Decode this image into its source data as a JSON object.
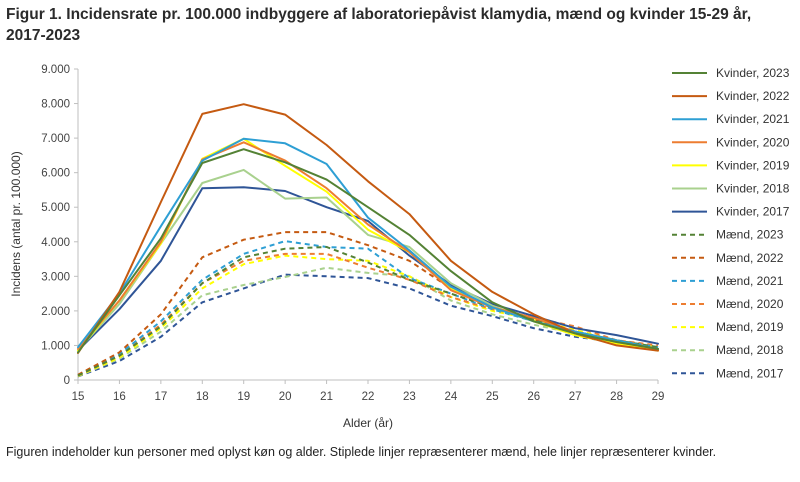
{
  "figure": {
    "title": "Figur 1. Incidensrate pr. 100.000 indbyggere af laboratoriepåvist klamydia, mænd og kvinder 15-29 år, 2017-2023",
    "note": "Figuren indeholder kun personer med oplyst køn og alder. Stiplede linjer repræsenterer mænd, hele linjer repræsenterer kvinder."
  },
  "chart_data": {
    "type": "line",
    "title": "Figur 1. Incidensrate pr. 100.000 indbyggere af laboratoriepåvist klamydia, mænd og kvinder 15-29 år, 2017-2023",
    "xlabel": "Alder (år)",
    "ylabel": "Incidens (antal pr. 100.000)",
    "x": [
      15,
      16,
      17,
      18,
      19,
      20,
      21,
      22,
      23,
      24,
      25,
      26,
      27,
      28,
      29
    ],
    "x_tick_labels": [
      "15",
      "16",
      "17",
      "18",
      "19",
      "20",
      "21",
      "22",
      "23",
      "24",
      "25",
      "26",
      "27",
      "28",
      "29"
    ],
    "ylim": [
      0,
      9000
    ],
    "y_ticks": [
      0,
      1000,
      2000,
      3000,
      4000,
      5000,
      6000,
      7000,
      8000,
      9000
    ],
    "y_tick_labels": [
      "0",
      "1.000",
      "2.000",
      "3.000",
      "4.000",
      "5.000",
      "6.000",
      "7.000",
      "8.000",
      "9.000"
    ],
    "grid": false,
    "legend_position": "right",
    "series": [
      {
        "name": "Kvinder, 2023",
        "color": "#548235",
        "dashed": false,
        "values": [
          800,
          2450,
          4100,
          6280,
          6680,
          6300,
          5800,
          5000,
          4200,
          3150,
          2250,
          1700,
          1350,
          1100,
          900
        ]
      },
      {
        "name": "Kvinder, 2022",
        "color": "#c55a11",
        "dashed": false,
        "values": [
          780,
          2550,
          5150,
          7700,
          7980,
          7680,
          6800,
          5750,
          4800,
          3450,
          2550,
          1900,
          1350,
          1000,
          850
        ]
      },
      {
        "name": "Kvinder, 2021",
        "color": "#2e9fd4",
        "dashed": false,
        "values": [
          950,
          2500,
          4450,
          6350,
          6980,
          6850,
          6250,
          4700,
          3750,
          2700,
          2100,
          1700,
          1400,
          1150,
          900
        ]
      },
      {
        "name": "Kvinder, 2020",
        "color": "#ed7d31",
        "dashed": false,
        "values": [
          900,
          2300,
          4000,
          6380,
          6880,
          6350,
          5550,
          4500,
          3700,
          2600,
          2100,
          1800,
          1400,
          1100,
          900
        ]
      },
      {
        "name": "Kvinder, 2019",
        "color": "#ffff00",
        "dashed": false,
        "values": [
          850,
          2300,
          3950,
          6400,
          6980,
          6200,
          5450,
          4350,
          3700,
          2650,
          2100,
          1700,
          1300,
          1050,
          850
        ]
      },
      {
        "name": "Kvinder, 2018",
        "color": "#a9d18e",
        "dashed": false,
        "values": [
          850,
          2200,
          3950,
          5700,
          6080,
          5250,
          5280,
          4200,
          3850,
          2800,
          2150,
          1700,
          1300,
          1050,
          880
        ]
      },
      {
        "name": "Kvinder, 2017",
        "color": "#2f5597",
        "dashed": false,
        "values": [
          850,
          2050,
          3450,
          5550,
          5580,
          5470,
          5000,
          4600,
          3600,
          2750,
          2200,
          1850,
          1500,
          1300,
          1050
        ]
      },
      {
        "name": "Mænd, 2023",
        "color": "#548235",
        "dashed": true,
        "values": [
          130,
          700,
          1550,
          2800,
          3550,
          3800,
          3850,
          3400,
          2900,
          2500,
          2100,
          1750,
          1400,
          1150,
          950
        ]
      },
      {
        "name": "Mænd, 2022",
        "color": "#c55a11",
        "dashed": true,
        "values": [
          150,
          800,
          1900,
          3550,
          4060,
          4280,
          4280,
          3900,
          3450,
          2650,
          2100,
          1750,
          1400,
          1100,
          900
        ]
      },
      {
        "name": "Mænd, 2021",
        "color": "#2e9fd4",
        "dashed": true,
        "values": [
          140,
          750,
          1700,
          2900,
          3650,
          4020,
          3850,
          3800,
          2950,
          2500,
          2050,
          1700,
          1400,
          1150,
          950
        ]
      },
      {
        "name": "Mænd, 2020",
        "color": "#ed7d31",
        "dashed": true,
        "values": [
          130,
          700,
          1600,
          2800,
          3450,
          3650,
          3650,
          3250,
          2900,
          2400,
          2050,
          1800,
          1550,
          1150,
          1000
        ]
      },
      {
        "name": "Mænd, 2019",
        "color": "#ffff00",
        "dashed": true,
        "values": [
          120,
          650,
          1500,
          2650,
          3350,
          3600,
          3500,
          3450,
          3000,
          2400,
          2000,
          1750,
          1450,
          1150,
          950
        ]
      },
      {
        "name": "Mænd, 2018",
        "color": "#a9d18e",
        "dashed": true,
        "values": [
          110,
          620,
          1400,
          2450,
          2750,
          2980,
          3250,
          3100,
          3000,
          2300,
          1900,
          1600,
          1350,
          1100,
          900
        ]
      },
      {
        "name": "Mænd, 2017",
        "color": "#2f5597",
        "dashed": true,
        "values": [
          100,
          550,
          1250,
          2250,
          2650,
          3050,
          3000,
          2950,
          2650,
          2150,
          1850,
          1500,
          1250,
          1100,
          950
        ]
      }
    ]
  }
}
